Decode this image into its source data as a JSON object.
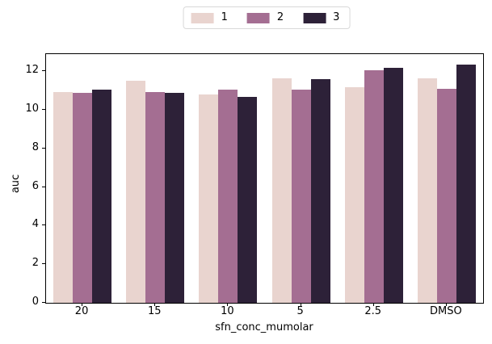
{
  "colors": {
    "background": "#ffffff",
    "axis": "#000000",
    "legend_border": "#d9d9d9",
    "series_1": "#e9d4cf",
    "series_2": "#a46e92",
    "series_3": "#2d2138"
  },
  "chart_data": {
    "type": "bar",
    "title": "",
    "xlabel": "sfn_conc_mumolar",
    "ylabel": "auc",
    "categories": [
      "20",
      "15",
      "10",
      "5",
      "2.5",
      "DMSO"
    ],
    "series": [
      {
        "name": "1",
        "color": "#e9d4cf",
        "values": [
          10.95,
          11.5,
          10.8,
          11.65,
          11.2,
          11.65
        ]
      },
      {
        "name": "2",
        "color": "#a46e92",
        "values": [
          10.9,
          10.95,
          11.05,
          11.05,
          12.05,
          11.1
        ]
      },
      {
        "name": "3",
        "color": "#2d2138",
        "values": [
          11.05,
          10.9,
          10.7,
          11.6,
          12.2,
          12.35
        ]
      }
    ],
    "ylim": [
      0,
      12.9
    ],
    "yticks": [
      0,
      2,
      4,
      6,
      8,
      10,
      12
    ],
    "legend_position": "upper center, outside axes",
    "legend_labels": [
      "1",
      "2",
      "3"
    ],
    "grid": false,
    "category_fill_ratio": 0.8
  }
}
